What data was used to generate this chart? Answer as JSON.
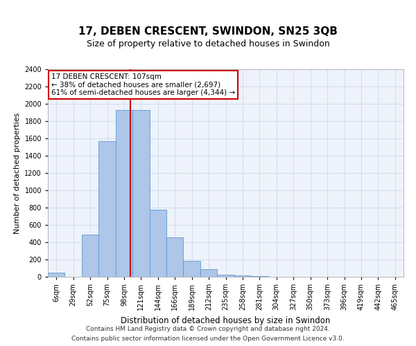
{
  "title": "17, DEBEN CRESCENT, SWINDON, SN25 3QB",
  "subtitle": "Size of property relative to detached houses in Swindon",
  "xlabel": "Distribution of detached houses by size in Swindon",
  "ylabel": "Number of detached properties",
  "categories": [
    "6sqm",
    "29sqm",
    "52sqm",
    "75sqm",
    "98sqm",
    "121sqm",
    "144sqm",
    "166sqm",
    "189sqm",
    "212sqm",
    "235sqm",
    "258sqm",
    "281sqm",
    "304sqm",
    "327sqm",
    "350sqm",
    "373sqm",
    "396sqm",
    "419sqm",
    "442sqm",
    "465sqm"
  ],
  "values": [
    50,
    0,
    490,
    1570,
    1930,
    1930,
    780,
    460,
    185,
    85,
    28,
    20,
    7,
    0,
    0,
    0,
    0,
    0,
    0,
    0,
    0
  ],
  "bar_color": "#aec6e8",
  "bar_edge_color": "#5b9bd5",
  "vline_color": "#cc0000",
  "annotation_line1": "17 DEBEN CRESCENT: 107sqm",
  "annotation_line2": "← 38% of detached houses are smaller (2,697)",
  "annotation_line3": "61% of semi-detached houses are larger (4,344) →",
  "annotation_box_color": "#ffffff",
  "annotation_box_edge_color": "#cc0000",
  "ylim": [
    0,
    2400
  ],
  "yticks": [
    0,
    200,
    400,
    600,
    800,
    1000,
    1200,
    1400,
    1600,
    1800,
    2000,
    2200,
    2400
  ],
  "grid_color": "#d0d8e8",
  "background_color": "#eef2fa",
  "footer_line1": "Contains HM Land Registry data © Crown copyright and database right 2024.",
  "footer_line2": "Contains public sector information licensed under the Open Government Licence v3.0.",
  "title_fontsize": 11,
  "subtitle_fontsize": 9,
  "xlabel_fontsize": 8.5,
  "ylabel_fontsize": 8,
  "tick_fontsize": 7,
  "footer_fontsize": 6.5,
  "annotation_fontsize": 7.5
}
